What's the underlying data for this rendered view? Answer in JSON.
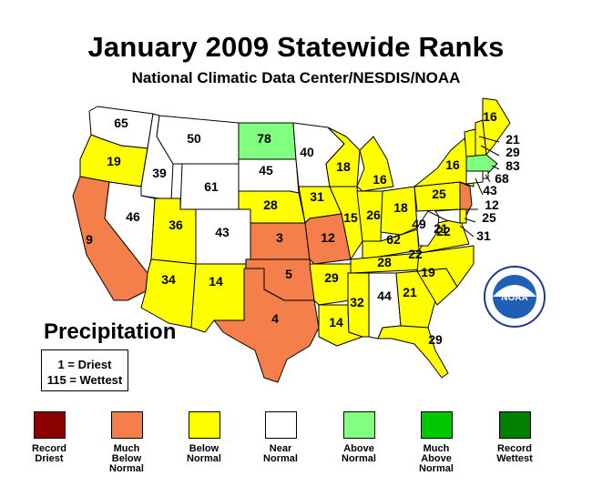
{
  "title": "January 2009 Statewide Ranks",
  "subtitle": "National Climatic Data Center/NESDIS/NOAA",
  "section_label": "Precipitation",
  "key": {
    "driest": "1 = Driest",
    "wettest": "115 = Wettest"
  },
  "logo_text": "NOAA",
  "legend": [
    {
      "lines": [
        "Record",
        "Driest"
      ],
      "color": "#8b0000"
    },
    {
      "lines": [
        "Much",
        "Below",
        "Normal"
      ],
      "color": "#f47f4a"
    },
    {
      "lines": [
        "Below",
        "Normal"
      ],
      "color": "#ffff00"
    },
    {
      "lines": [
        "Near",
        "Normal"
      ],
      "color": "#ffffff"
    },
    {
      "lines": [
        "Above",
        "Normal"
      ],
      "color": "#80ff80"
    },
    {
      "lines": [
        "Much",
        "Above",
        "Normal"
      ],
      "color": "#00c800"
    },
    {
      "lines": [
        "Record",
        "Wettest"
      ],
      "color": "#008000"
    }
  ],
  "states": [
    {
      "state": "WA",
      "rank": "65",
      "category": "Near Normal"
    },
    {
      "state": "OR",
      "rank": "19",
      "category": "Below Normal"
    },
    {
      "state": "CA",
      "rank": "9",
      "category": "Much Below Normal"
    },
    {
      "state": "ID",
      "rank": "39",
      "category": "Near Normal"
    },
    {
      "state": "NV",
      "rank": "46",
      "category": "Near Normal"
    },
    {
      "state": "MT",
      "rank": "50",
      "category": "Near Normal"
    },
    {
      "state": "WY",
      "rank": "61",
      "category": "Near Normal"
    },
    {
      "state": "UT",
      "rank": "36",
      "category": "Below Normal"
    },
    {
      "state": "AZ",
      "rank": "34",
      "category": "Below Normal"
    },
    {
      "state": "CO",
      "rank": "43",
      "category": "Near Normal"
    },
    {
      "state": "NM",
      "rank": "14",
      "category": "Below Normal"
    },
    {
      "state": "ND",
      "rank": "78",
      "category": "Above Normal"
    },
    {
      "state": "SD",
      "rank": "45",
      "category": "Near Normal"
    },
    {
      "state": "NE",
      "rank": "28",
      "category": "Below Normal"
    },
    {
      "state": "KS",
      "rank": "3",
      "category": "Much Below Normal"
    },
    {
      "state": "OK",
      "rank": "5",
      "category": "Much Below Normal"
    },
    {
      "state": "TX",
      "rank": "4",
      "category": "Much Below Normal"
    },
    {
      "state": "MN",
      "rank": "40",
      "category": "Near Normal"
    },
    {
      "state": "IA",
      "rank": "31",
      "category": "Below Normal"
    },
    {
      "state": "MO",
      "rank": "12",
      "category": "Much Below Normal"
    },
    {
      "state": "AR",
      "rank": "29",
      "category": "Below Normal"
    },
    {
      "state": "LA",
      "rank": "14",
      "category": "Below Normal"
    },
    {
      "state": "WI",
      "rank": "18",
      "category": "Below Normal"
    },
    {
      "state": "IL",
      "rank": "15",
      "category": "Below Normal"
    },
    {
      "state": "MS",
      "rank": "32",
      "category": "Below Normal"
    },
    {
      "state": "MI",
      "rank": "16",
      "category": "Below Normal"
    },
    {
      "state": "IN",
      "rank": "26",
      "category": "Below Normal"
    },
    {
      "state": "OH",
      "rank": "18",
      "category": "Below Normal"
    },
    {
      "state": "KY",
      "rank": "28",
      "category": "Below Normal"
    },
    {
      "state": "TN",
      "rank": "22",
      "category": "Below Normal"
    },
    {
      "state": "AL",
      "rank": "44",
      "category": "Near Normal"
    },
    {
      "state": "GA",
      "rank": "21",
      "category": "Below Normal"
    },
    {
      "state": "FL",
      "rank": "29",
      "category": "Below Normal"
    },
    {
      "state": "SC",
      "rank": "19",
      "category": "Below Normal"
    },
    {
      "state": "NC",
      "rank": "22",
      "category": "Below Normal"
    },
    {
      "state": "VA",
      "rank": "21",
      "category": "Below Normal"
    },
    {
      "state": "WV",
      "rank": "62",
      "category": "Near Normal"
    },
    {
      "state": "MD",
      "rank": "49",
      "category": "Near Normal"
    },
    {
      "state": "PA",
      "rank": "25",
      "category": "Below Normal"
    },
    {
      "state": "NY",
      "rank": "16",
      "category": "Below Normal"
    },
    {
      "state": "VT",
      "rank": "16",
      "category": "Below Normal"
    },
    {
      "state": "NH",
      "rank": "21",
      "category": "Below Normal"
    },
    {
      "state": "ME",
      "rank": "29",
      "category": "Below Normal"
    },
    {
      "state": "MA",
      "rank": "83",
      "category": "Above Normal"
    },
    {
      "state": "RI",
      "rank": "68",
      "category": "Near Normal"
    },
    {
      "state": "CT",
      "rank": "43",
      "category": "Near Normal"
    },
    {
      "state": "NJ",
      "rank": "12",
      "category": "Much Below Normal"
    },
    {
      "state": "DE",
      "rank": "25",
      "category": "Below Normal"
    },
    {
      "state": "MDE",
      "rank": "31",
      "category": "Below Normal"
    }
  ]
}
